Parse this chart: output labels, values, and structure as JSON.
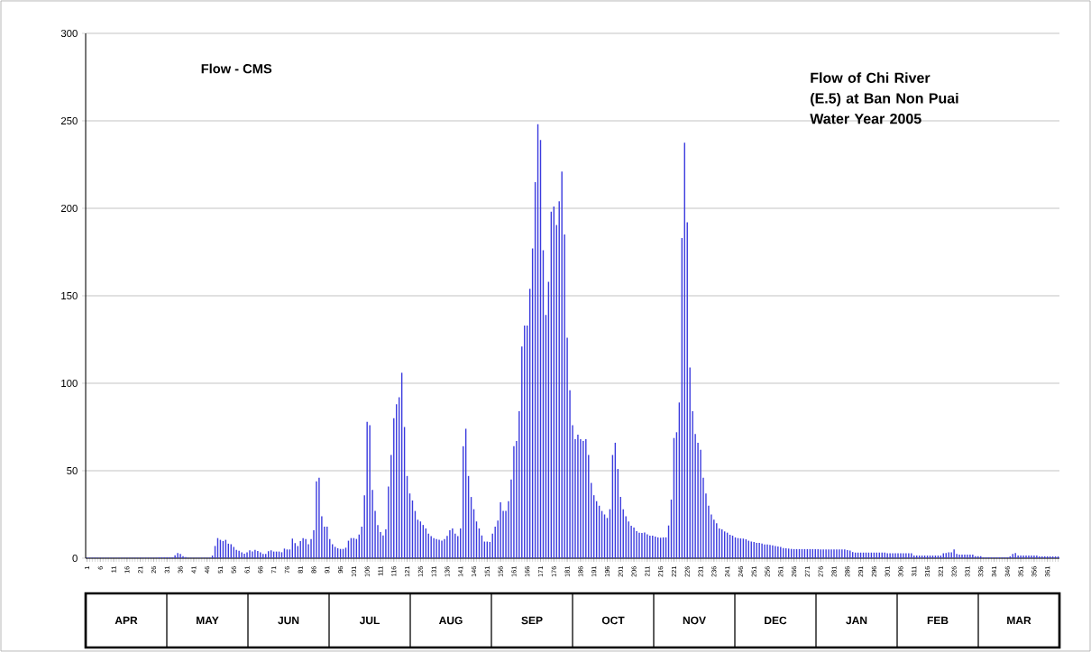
{
  "chart_data": {
    "type": "bar",
    "title": "Flow of Chi River (E.5) at Ban Non Puai Water Year 2005",
    "ylabel": "Flow - CMS",
    "categories": [
      "1",
      null,
      null,
      null,
      null,
      "6",
      null,
      null,
      null,
      null,
      "11",
      null,
      null,
      null,
      null,
      "16",
      null,
      null,
      null,
      null,
      "21",
      null,
      null,
      null,
      null,
      "26",
      null,
      null,
      null,
      null,
      "31",
      null,
      null,
      null,
      null,
      "36",
      null,
      null,
      null,
      null,
      "41",
      null,
      null,
      null,
      null,
      "46",
      null,
      null,
      null,
      null,
      "51",
      null,
      null,
      null,
      null,
      "56",
      null,
      null,
      null,
      null,
      "61",
      null,
      null,
      null,
      null,
      "66",
      null,
      null,
      null,
      null,
      "71",
      null,
      null,
      null,
      null,
      "76",
      null,
      null,
      null,
      null,
      "81",
      null,
      null,
      null,
      null,
      "86",
      null,
      null,
      null,
      null,
      "91",
      null,
      null,
      null,
      null,
      "96",
      null,
      null,
      null,
      null,
      "101",
      null,
      null,
      null,
      null,
      "106",
      null,
      null,
      null,
      null,
      "111",
      null,
      null,
      null,
      null,
      "116",
      null,
      null,
      null,
      null,
      "121",
      null,
      null,
      null,
      null,
      "126",
      null,
      null,
      null,
      null,
      "131",
      null,
      null,
      null,
      null,
      "136",
      null,
      null,
      null,
      null,
      "141",
      null,
      null,
      null,
      null,
      "146",
      null,
      null,
      null,
      null,
      "151",
      null,
      null,
      null,
      null,
      "156",
      null,
      null,
      null,
      null,
      "161",
      null,
      null,
      null,
      null,
      "166",
      null,
      null,
      null,
      null,
      "171",
      null,
      null,
      null,
      null,
      "176",
      null,
      null,
      null,
      null,
      "181",
      null,
      null,
      null,
      null,
      "186",
      null,
      null,
      null,
      null,
      "191",
      null,
      null,
      null,
      null,
      "196",
      null,
      null,
      null,
      null,
      "201",
      null,
      null,
      null,
      null,
      "206",
      null,
      null,
      null,
      null,
      "211",
      null,
      null,
      null,
      null,
      "216",
      null,
      null,
      null,
      null,
      "221",
      null,
      null,
      null,
      null,
      "226",
      null,
      null,
      null,
      null,
      "231",
      null,
      null,
      null,
      null,
      "236",
      null,
      null,
      null,
      null,
      "241",
      null,
      null,
      null,
      null,
      "246",
      null,
      null,
      null,
      null,
      "251",
      null,
      null,
      null,
      null,
      "256",
      null,
      null,
      null,
      null,
      "261",
      null,
      null,
      null,
      null,
      "266",
      null,
      null,
      null,
      null,
      "271",
      null,
      null,
      null,
      null,
      "276",
      null,
      null,
      null,
      null,
      "281",
      null,
      null,
      null,
      null,
      "286",
      null,
      null,
      null,
      null,
      "291",
      null,
      null,
      null,
      null,
      "296",
      null,
      null,
      null,
      null,
      "301",
      null,
      null,
      null,
      null,
      "306",
      null,
      null,
      null,
      null,
      "311",
      null,
      null,
      null,
      null,
      "316",
      null,
      null,
      null,
      null,
      "321",
      null,
      null,
      null,
      null,
      "326",
      null,
      null,
      null,
      null,
      "331",
      null,
      null,
      null,
      null,
      "336",
      null,
      null,
      null,
      null,
      "341",
      null,
      null,
      null,
      null,
      "346",
      null,
      null,
      null,
      null,
      "351",
      null,
      null,
      null,
      null,
      "356",
      null,
      null,
      null,
      null,
      "361",
      null,
      null,
      null,
      null
    ],
    "values": [
      0.3,
      0.3,
      0.3,
      0.3,
      0.3,
      0.3,
      0.3,
      0.3,
      0.3,
      0.3,
      0.3,
      0.3,
      0.3,
      0.3,
      0.3,
      0.3,
      0.3,
      0.3,
      0.3,
      0.3,
      0.3,
      0.3,
      0.3,
      0.3,
      0.3,
      0.3,
      0.3,
      0.5,
      0.5,
      0.5,
      0.5,
      0.5,
      0.5,
      1.7,
      3,
      2.4,
      1.2,
      0.7,
      0.3,
      0.3,
      0.3,
      0.3,
      0.3,
      0.3,
      0.3,
      0.3,
      0.3,
      1.5,
      7,
      11.5,
      10.5,
      9.8,
      10.5,
      8.3,
      8,
      6.5,
      4.8,
      4.3,
      3.3,
      2.6,
      3.4,
      4.5,
      3.8,
      4.7,
      4.1,
      3.4,
      2.4,
      2.4,
      4,
      4.5,
      3.8,
      3.8,
      3.8,
      3.4,
      5.5,
      5,
      5,
      11.2,
      8.6,
      7,
      9.8,
      11.5,
      11,
      8,
      11,
      16,
      44,
      46,
      24,
      18,
      18,
      11,
      8,
      6.5,
      5.7,
      5.3,
      5.3,
      6,
      10,
      11.5,
      11.5,
      11,
      13.5,
      18,
      36,
      78,
      76,
      39,
      27,
      19,
      15,
      13,
      16.5,
      41,
      59,
      80,
      88,
      92,
      106,
      75,
      47,
      37,
      33,
      27,
      22,
      21,
      19,
      17,
      14,
      12.6,
      11.5,
      11,
      10.5,
      10,
      11,
      12.8,
      16,
      17,
      14,
      12.6,
      17,
      64,
      74,
      47,
      35,
      28,
      21,
      17,
      13,
      9.5,
      9.5,
      9.3,
      14,
      18,
      21.5,
      32,
      27,
      27,
      32.6,
      45,
      64,
      67,
      84,
      121,
      133,
      133,
      154,
      177,
      215,
      248,
      239,
      176,
      139,
      158,
      198,
      201,
      190.5,
      204,
      221,
      185,
      126,
      96,
      76,
      68,
      70.6,
      68,
      67,
      68,
      59,
      43,
      36,
      32.6,
      30,
      27,
      25,
      23,
      28,
      59,
      66,
      51,
      35,
      28,
      24,
      21,
      18.6,
      17.5,
      15.5,
      14.6,
      14.4,
      14.7,
      13.7,
      12.9,
      12.9,
      12.4,
      11.9,
      11.7,
      11.9,
      11.9,
      18.7,
      33.5,
      68.7,
      72,
      89,
      183,
      237.5,
      192,
      109,
      84,
      71,
      66,
      62,
      46,
      37,
      30,
      25,
      22,
      20,
      17,
      16.5,
      15.3,
      14.6,
      13.4,
      12.9,
      11.9,
      11.5,
      11.3,
      11.2,
      10.8,
      10,
      9.5,
      9.3,
      8.8,
      8.8,
      8.4,
      7.9,
      7.9,
      7.6,
      7.4,
      6.9,
      6.7,
      6.4,
      5.8,
      5.7,
      5.5,
      5.3,
      5.2,
      5.2,
      5.2,
      5.2,
      5.2,
      5.2,
      5.2,
      5.2,
      5.2,
      5.2,
      5,
      5,
      5,
      5,
      5,
      5,
      5,
      5,
      5,
      5,
      4.6,
      4.4,
      3.5,
      3.2,
      3.2,
      3.2,
      3.2,
      3.2,
      3.2,
      3.2,
      3.2,
      3.2,
      3.2,
      3.2,
      3.2,
      2.8,
      2.8,
      2.8,
      2.8,
      2.8,
      2.8,
      2.8,
      2.8,
      2.8,
      2.8,
      1.5,
      1.5,
      1.5,
      1.5,
      1.5,
      1.5,
      1.5,
      1.5,
      1.5,
      1.5,
      1.5,
      2.8,
      3,
      3.3,
      3.3,
      5,
      2.5,
      2,
      2,
      2,
      2,
      2,
      2,
      1.2,
      1.2,
      1.2,
      0.5,
      0.5,
      0.5,
      0.5,
      0.5,
      0.5,
      0.5,
      0.5,
      0.5,
      0.5,
      1,
      2.5,
      3,
      1.5,
      1.5,
      1.5,
      1.5,
      1.5,
      1.5,
      1.5,
      1.5,
      1,
      1,
      1,
      1,
      1,
      1,
      1,
      1
    ],
    "color": "#3a3ade",
    "ylim": [
      0,
      300
    ],
    "yticks": [
      0,
      50,
      100,
      150,
      200,
      250,
      300
    ],
    "grid": "y",
    "annotations": [
      "APR",
      "MAY",
      "JUN",
      "JUL",
      "AUG",
      "SEP",
      "OCT",
      "NOV",
      "DEC",
      "JAN",
      "FEB",
      "MAR"
    ]
  }
}
